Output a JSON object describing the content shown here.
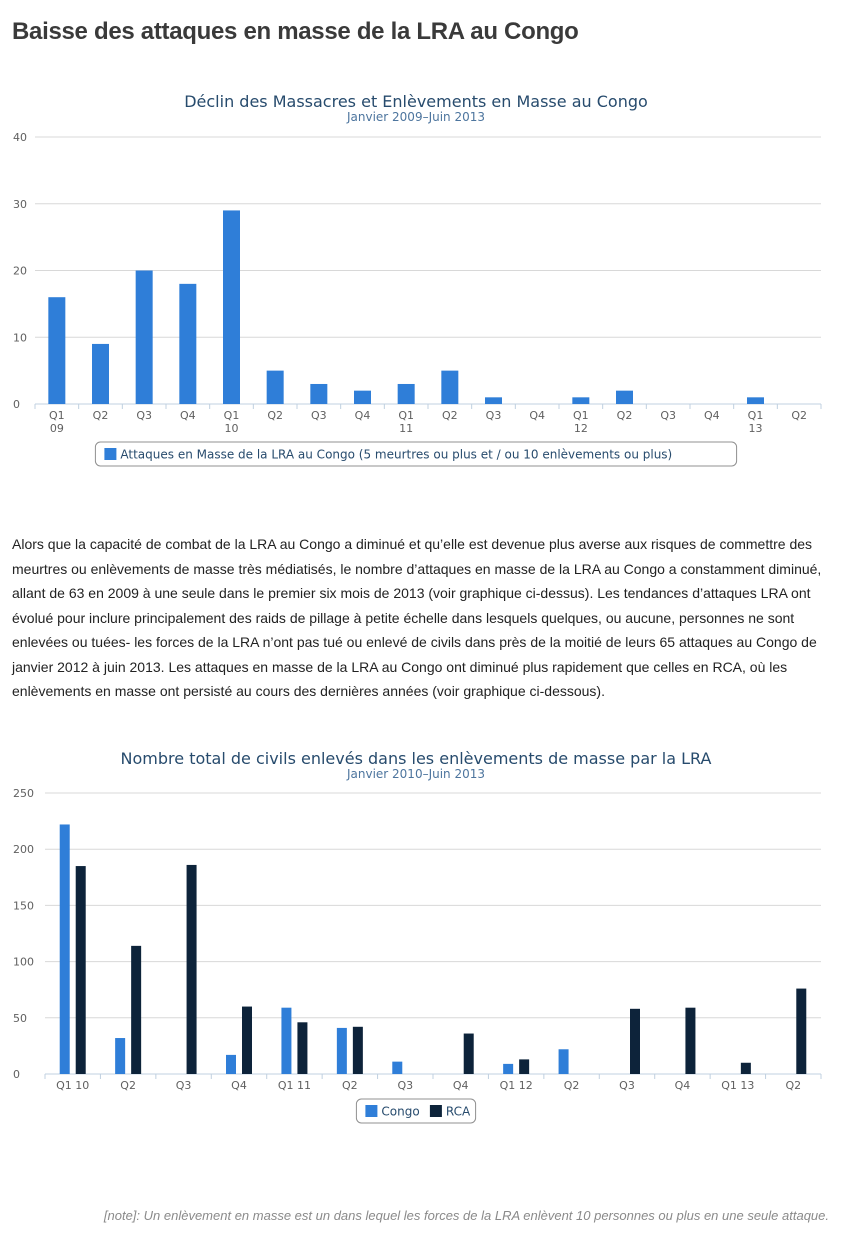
{
  "page": {
    "title": "Baisse des attaques en masse de la LRA au Congo",
    "paragraph": "Alors que la capacité de combat de la LRA au Congo a diminué et qu’elle est devenue plus averse aux risques de commettre des meurtres ou enlèvements de masse très médiatisés, le nombre d’attaques en masse de la LRA au Congo a constamment diminué, allant de 63 en 2009 à une seule dans le premier six mois de 2013 (voir graphique ci-dessus). Les tendances d’attaques LRA ont évolué pour inclure principalement des raids de pillage à petite échelle dans lesquels quelques, ou aucune, personnes ne sont enlevées ou tuées- les forces de la LRA n’ont pas tué ou enlevé de civils dans près de la moitié de leurs 65 attaques au Congo de janvier 2012 à juin 2013. Les attaques en masse de la LRA au Congo ont diminué plus rapidement que celles en RCA, où les enlèvements en masse ont persisté au cours des dernières années (voir graphique ci-dessous).",
    "note": "[note]: Un enlèvement en masse est un dans lequel les forces de la LRA enlèvent 10 personnes ou plus en une seule attaque."
  },
  "chart_data": [
    {
      "type": "bar",
      "title": "Déclin des Massacres et Enlèvements en Masse au Congo",
      "subtitle": "Janvier 2009–Juin 2013",
      "categories": [
        "Q1\n09",
        "Q2",
        "Q3",
        "Q4",
        "Q1\n10",
        "Q2",
        "Q3",
        "Q4",
        "Q1\n11",
        "Q2",
        "Q3",
        "Q4",
        "Q1\n12",
        "Q2",
        "Q3",
        "Q4",
        "Q1\n13",
        "Q2"
      ],
      "series": [
        {
          "name": "Attaques en Masse de la LRA au Congo (5 meurtres ou plus et / ou 10 enlèvements ou plus)",
          "color": "#2f7ed8",
          "values": [
            16,
            9,
            20,
            18,
            29,
            5,
            3,
            2,
            3,
            5,
            1,
            0,
            1,
            2,
            0,
            0,
            1,
            0
          ]
        }
      ],
      "yticks": [
        0,
        10,
        20,
        30,
        40
      ],
      "ylim": [
        0,
        40
      ],
      "grid": true,
      "legend_position": "bottom-center"
    },
    {
      "type": "bar",
      "title": "Nombre total de civils enlevés dans les enlèvements de masse par la LRA",
      "subtitle": "Janvier 2010–Juin 2013",
      "categories": [
        "Q1 10",
        "Q2",
        "Q3",
        "Q4",
        "Q1 11",
        "Q2",
        "Q3",
        "Q4",
        "Q1 12",
        "Q2",
        "Q3",
        "Q4",
        "Q1 13",
        "Q2"
      ],
      "series": [
        {
          "name": "Congo",
          "color": "#2f7ed8",
          "values": [
            222,
            32,
            0,
            17,
            59,
            41,
            11,
            0,
            9,
            22,
            0,
            0,
            0,
            0
          ]
        },
        {
          "name": "RCA",
          "color": "#0d233a",
          "values": [
            185,
            114,
            186,
            60,
            46,
            42,
            0,
            36,
            13,
            0,
            58,
            59,
            10,
            76
          ]
        }
      ],
      "yticks": [
        0,
        50,
        100,
        150,
        200,
        250
      ],
      "ylim": [
        0,
        250
      ],
      "grid": true,
      "legend_position": "bottom-center"
    }
  ]
}
